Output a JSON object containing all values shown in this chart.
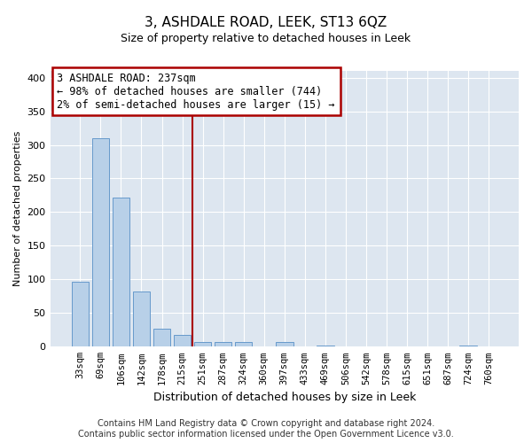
{
  "title": "3, ASHDALE ROAD, LEEK, ST13 6QZ",
  "subtitle": "Size of property relative to detached houses in Leek",
  "xlabel": "Distribution of detached houses by size in Leek",
  "ylabel": "Number of detached properties",
  "footer_line1": "Contains HM Land Registry data © Crown copyright and database right 2024.",
  "footer_line2": "Contains public sector information licensed under the Open Government Licence v3.0.",
  "annotation_line1": "3 ASHDALE ROAD: 237sqm",
  "annotation_line2": "← 98% of detached houses are smaller (744)",
  "annotation_line3": "2% of semi-detached houses are larger (15) →",
  "vline_x": 5.5,
  "bar_color": "#b8d0e8",
  "bar_edge_color": "#6699cc",
  "vline_color": "#aa0000",
  "annotation_box_edgecolor": "#aa0000",
  "background_color": "#dde6f0",
  "grid_color": "#c8d4e4",
  "categories": [
    "33sqm",
    "69sqm",
    "106sqm",
    "142sqm",
    "178sqm",
    "215sqm",
    "251sqm",
    "287sqm",
    "324sqm",
    "360sqm",
    "397sqm",
    "433sqm",
    "469sqm",
    "506sqm",
    "542sqm",
    "578sqm",
    "615sqm",
    "651sqm",
    "687sqm",
    "724sqm",
    "760sqm"
  ],
  "values": [
    97,
    310,
    222,
    82,
    27,
    18,
    7,
    7,
    7,
    0,
    7,
    0,
    2,
    0,
    0,
    0,
    0,
    0,
    0,
    2,
    0
  ],
  "ylim": [
    0,
    410
  ],
  "yticks": [
    0,
    50,
    100,
    150,
    200,
    250,
    300,
    350,
    400
  ],
  "title_fontsize": 11,
  "subtitle_fontsize": 9,
  "ylabel_fontsize": 8,
  "xlabel_fontsize": 9,
  "tick_fontsize": 8,
  "xtick_fontsize": 7.5,
  "annotation_fontsize": 8.5,
  "footer_fontsize": 7
}
